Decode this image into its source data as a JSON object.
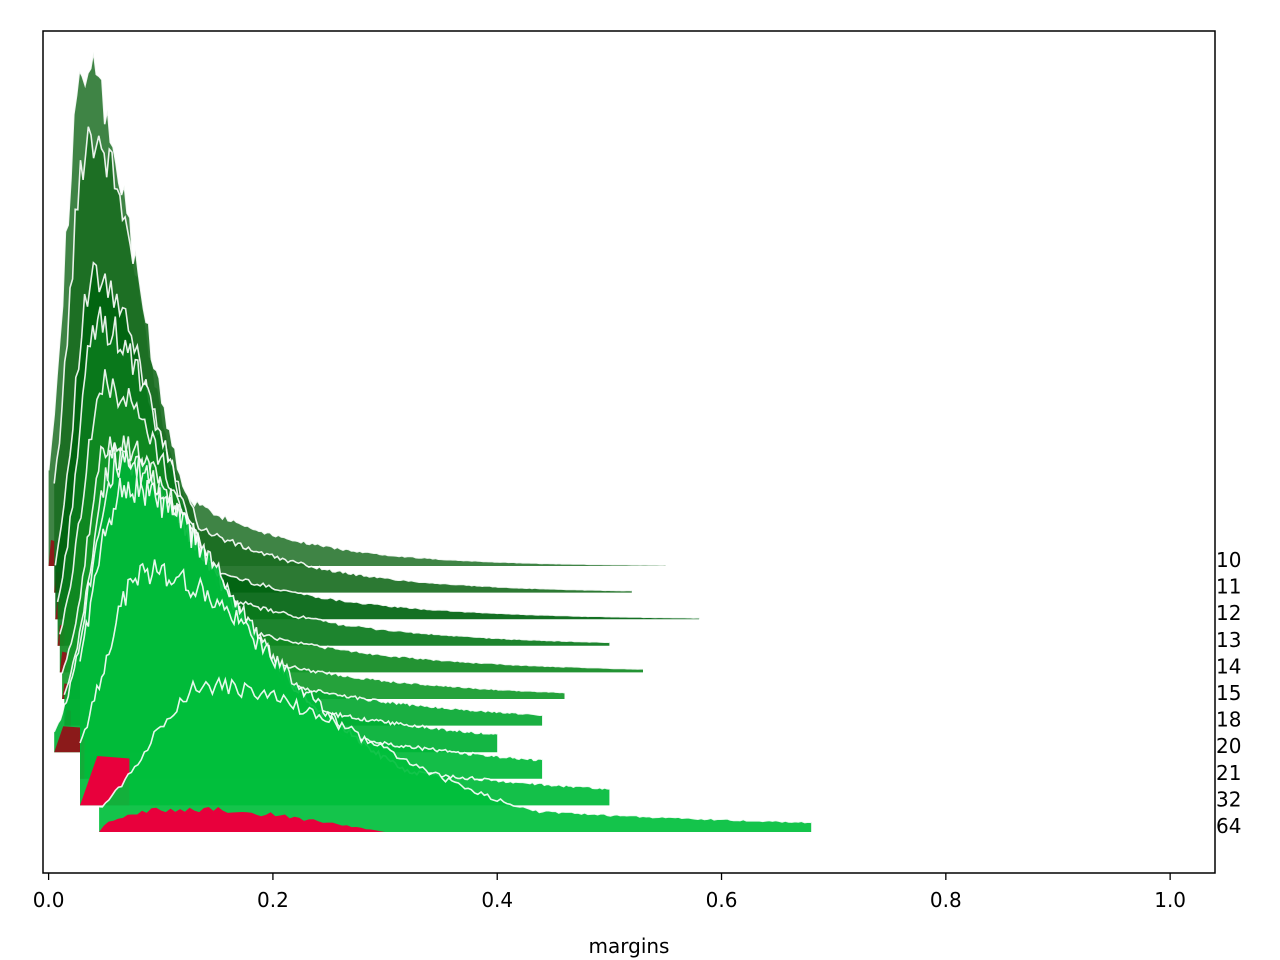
{
  "chart_data": {
    "type": "area",
    "subtype": "ridgeline",
    "title": "",
    "xlabel": "margins",
    "ylabel": "",
    "xlim": [
      -0.005,
      1.04
    ],
    "xticks": [
      0.0,
      0.2,
      0.4,
      0.6,
      0.8,
      1.0
    ],
    "xtick_labels": [
      "0.0",
      "0.2",
      "0.4",
      "0.6",
      "0.8",
      "1.0"
    ],
    "grid": false,
    "legend": "none",
    "colors": {
      "positive_margin": "#00b83a",
      "negative_margin": "#e8003c",
      "outline": "#ffffff"
    },
    "series": [
      {
        "label": "10",
        "peak_x": 0.032,
        "peak_height": 0.95,
        "width_left": 0.018,
        "width_right": 0.045,
        "x_start": 0.0,
        "x_end": 0.55,
        "neg_end": 0.006,
        "neg_height": 0.05,
        "color": "#2f7a35"
      },
      {
        "label": "11",
        "peak_x": 0.036,
        "peak_height": 0.88,
        "width_left": 0.018,
        "width_right": 0.05,
        "x_start": 0.005,
        "x_end": 0.52,
        "neg_end": 0.01,
        "neg_height": 0.04,
        "color": "#1a6e22"
      },
      {
        "label": "12",
        "peak_x": 0.04,
        "peak_height": 0.65,
        "width_left": 0.018,
        "width_right": 0.055,
        "x_start": 0.006,
        "x_end": 0.58,
        "neg_end": 0.012,
        "neg_height": 0.04,
        "color": "#006410"
      },
      {
        "label": "13",
        "peak_x": 0.044,
        "peak_height": 0.62,
        "width_left": 0.018,
        "width_right": 0.06,
        "x_start": 0.008,
        "x_end": 0.5,
        "neg_end": 0.014,
        "neg_height": 0.04,
        "color": "#0a7a1c"
      },
      {
        "label": "14",
        "peak_x": 0.05,
        "peak_height": 0.55,
        "width_left": 0.02,
        "width_right": 0.065,
        "x_start": 0.01,
        "x_end": 0.53,
        "neg_end": 0.016,
        "neg_height": 0.04,
        "color": "#108a22"
      },
      {
        "label": "15",
        "peak_x": 0.055,
        "peak_height": 0.5,
        "width_left": 0.02,
        "width_right": 0.07,
        "x_start": 0.012,
        "x_end": 0.46,
        "neg_end": 0.018,
        "neg_height": 0.03,
        "color": "#129a2a"
      },
      {
        "label": "18",
        "peak_x": 0.06,
        "peak_height": 0.52,
        "width_left": 0.022,
        "width_right": 0.08,
        "x_start": 0.014,
        "x_end": 0.44,
        "neg_end": 0.02,
        "neg_height": 0.03,
        "color": "#07a832"
      },
      {
        "label": "20",
        "peak_x": 0.062,
        "peak_height": 0.55,
        "width_left": 0.025,
        "width_right": 0.09,
        "x_start": 0.005,
        "x_end": 0.4,
        "neg_end": 0.028,
        "neg_height": 0.05,
        "color": "#00b034"
      },
      {
        "label": "21",
        "peak_x": 0.068,
        "peak_height": 0.56,
        "width_left": 0.03,
        "width_right": 0.1,
        "x_start": 0.028,
        "x_end": 0.44,
        "neg_end": 0.032,
        "neg_height": 0.08,
        "color": "#00b838"
      },
      {
        "label": "32",
        "peak_x": 0.085,
        "peak_height": 0.45,
        "width_left": 0.035,
        "width_right": 0.12,
        "x_start": 0.028,
        "x_end": 0.5,
        "neg_end": 0.072,
        "neg_height": 0.095,
        "color": "#00bb3a"
      },
      {
        "label": "64",
        "peak_x": 0.14,
        "peak_height": 0.28,
        "width_left": 0.05,
        "width_right": 0.15,
        "x_start": 0.045,
        "x_end": 0.68,
        "neg_end": 0.3,
        "neg_height": 0.045,
        "color": "#00bf3c"
      }
    ]
  }
}
